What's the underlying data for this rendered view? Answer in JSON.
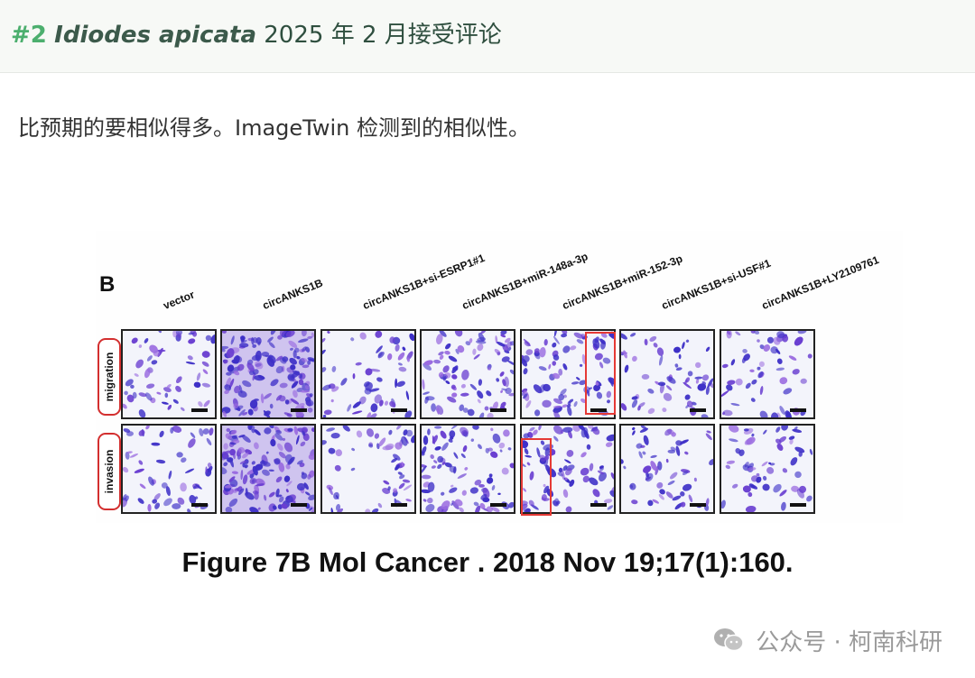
{
  "header": {
    "number": "#2",
    "species": "Idiodes apicata",
    "date_text": "2025 年 2 月接受评论"
  },
  "intro_text": "比预期的要相似得多。ImageTwin 检测到的相似性。",
  "figure": {
    "panel_letter": "B",
    "columns": [
      {
        "label": "vector",
        "stain": "light"
      },
      {
        "label": "circANKS1B",
        "stain": "dense"
      },
      {
        "label": "circANKS1B+si-ESRP1#1",
        "stain": "light"
      },
      {
        "label": "circANKS1B+miR-148a-3p",
        "stain": "medium"
      },
      {
        "label": "circANKS1B+miR-152-3p",
        "stain": "medium"
      },
      {
        "label": "circANKS1B+si-USF#1",
        "stain": "light"
      },
      {
        "label": "circANKS1B+LY2109761",
        "stain": "light"
      }
    ],
    "rows": [
      {
        "label": "migration"
      },
      {
        "label": "invasion"
      }
    ],
    "highlights": [
      {
        "row": 0,
        "column": 4
      },
      {
        "row": 1,
        "column": 4
      }
    ],
    "highlight_color": "#e53935",
    "stain_color": "#3d2fc7"
  },
  "caption": "Figure 7B Mol Cancer . 2018 Nov 19;17(1):160.",
  "watermark": {
    "icon": "wechat-icon",
    "text": "公众号 · 柯南科研"
  }
}
